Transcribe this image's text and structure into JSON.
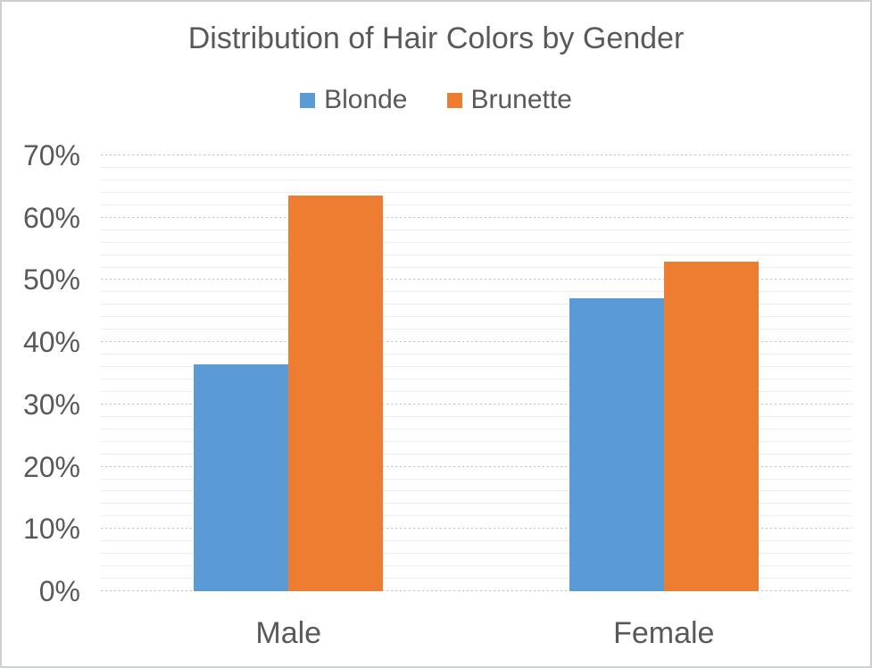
{
  "figure": {
    "background": "#FFFFFF",
    "border_color": "#CDD0D1",
    "text_color": "#595959"
  },
  "chart_data": {
    "type": "bar",
    "title": "Distribution of Hair Colors by Gender",
    "categories": [
      "Male",
      "Female"
    ],
    "series": [
      {
        "name": "Blonde",
        "color": "#5B9BD5",
        "values": [
          36.4,
          47.0
        ]
      },
      {
        "name": "Brunette",
        "color": "#ED7D31",
        "values": [
          63.6,
          53.0
        ]
      }
    ],
    "xlabel": "",
    "ylabel": "",
    "ylim": [
      0,
      70
    ],
    "y_unit": "%",
    "y_major_step": 10,
    "y_minor_step": 2,
    "y_tick_labels": [
      "0%",
      "10%",
      "20%",
      "30%",
      "40%",
      "50%",
      "60%",
      "70%"
    ],
    "legend_position": "top",
    "grid": {
      "major_style": "dashed",
      "major_color": "#BFBFBF",
      "minor_style": "solid",
      "minor_color": "#EDEDED"
    }
  }
}
